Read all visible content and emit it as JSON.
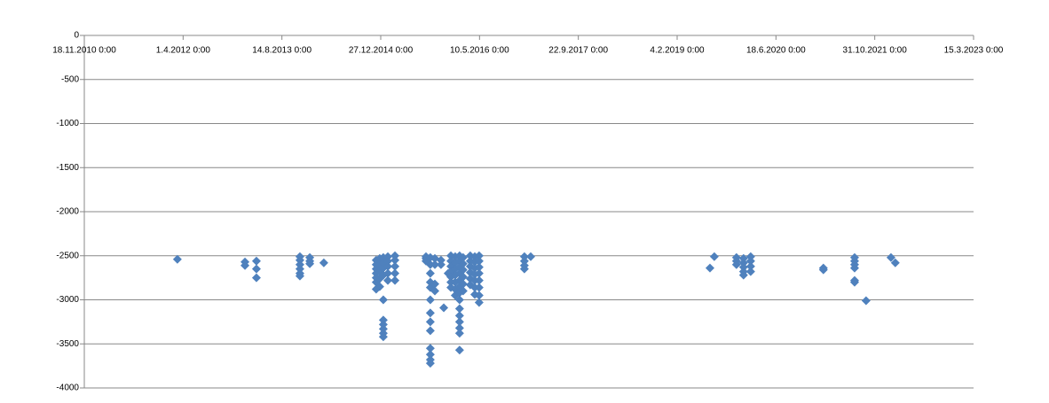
{
  "chart_data": {
    "type": "scatter",
    "color": "#4f81bd",
    "grid": true,
    "xlim": [
      40500,
      45000
    ],
    "xticks": [
      {
        "value": 40500,
        "label": "18.11.2010 0:00"
      },
      {
        "value": 41000,
        "label": "1.4.2012 0:00"
      },
      {
        "value": 41500,
        "label": "14.8.2013 0:00"
      },
      {
        "value": 42000,
        "label": "27.12.2014 0:00"
      },
      {
        "value": 42500,
        "label": "10.5.2016 0:00"
      },
      {
        "value": 43000,
        "label": "22.9.2017 0:00"
      },
      {
        "value": 43500,
        "label": "4.2.2019 0:00"
      },
      {
        "value": 44000,
        "label": "18.6.2020 0:00"
      },
      {
        "value": 44500,
        "label": "31.10.2021 0:00"
      },
      {
        "value": 45000,
        "label": "15.3.2023 0:00"
      }
    ],
    "ylim": [
      -4000,
      0
    ],
    "yticks": [
      0,
      -500,
      -1000,
      -1500,
      -2000,
      -2500,
      -3000,
      -3500,
      -4000
    ],
    "x": [
      40971,
      41313,
      41313,
      41371,
      41371,
      41371,
      41591,
      41591,
      41591,
      41591,
      41591,
      41591,
      41641,
      41641,
      41641,
      41712,
      41977,
      41977,
      41977,
      41977,
      41977,
      41977,
      41977,
      41995,
      41995,
      41995,
      41995,
      41995,
      42013,
      42013,
      42013,
      42013,
      42013,
      42013,
      42013,
      42013,
      42013,
      42013,
      42036,
      42036,
      42036,
      42036,
      42036,
      42072,
      42072,
      42072,
      42072,
      42072,
      42229,
      42229,
      42229,
      42251,
      42251,
      42251,
      42251,
      42251,
      42251,
      42251,
      42251,
      42251,
      42251,
      42251,
      42251,
      42251,
      42274,
      42274,
      42274,
      42274,
      42305,
      42305,
      42319,
      42341,
      42355,
      42355,
      42355,
      42355,
      42355,
      42355,
      42355,
      42377,
      42377,
      42377,
      42377,
      42377,
      42377,
      42377,
      42399,
      42399,
      42399,
      42399,
      42399,
      42399,
      42399,
      42399,
      42399,
      42399,
      42399,
      42399,
      42399,
      42399,
      42417,
      42417,
      42417,
      42417,
      42417,
      42417,
      42453,
      42453,
      42453,
      42453,
      42453,
      42453,
      42476,
      42476,
      42476,
      42476,
      42476,
      42476,
      42476,
      42498,
      42498,
      42498,
      42498,
      42498,
      42498,
      42498,
      42498,
      42727,
      42727,
      42727,
      42727,
      42759,
      43666,
      43688,
      43800,
      43800,
      43800,
      43836,
      43836,
      43836,
      43836,
      43836,
      43872,
      43872,
      43872,
      43872,
      44240,
      44240,
      44398,
      44398,
      44398,
      44398,
      44398,
      44398,
      44456,
      44582,
      44604
    ],
    "values": [
      -2540,
      -2570,
      -2610,
      -2560,
      -2650,
      -2750,
      -2510,
      -2550,
      -2600,
      -2650,
      -2700,
      -2730,
      -2520,
      -2560,
      -2590,
      -2580,
      -2550,
      -2600,
      -2650,
      -2700,
      -2750,
      -2800,
      -2880,
      -2530,
      -2600,
      -2680,
      -2760,
      -2850,
      -2520,
      -2580,
      -2640,
      -2720,
      -3000,
      -3230,
      -3280,
      -3330,
      -3380,
      -3420,
      -2510,
      -2560,
      -2620,
      -2700,
      -2780,
      -2500,
      -2550,
      -2620,
      -2700,
      -2780,
      -2510,
      -2530,
      -2560,
      -2520,
      -2600,
      -2700,
      -2800,
      -2860,
      -3000,
      -3150,
      -3250,
      -3350,
      -3550,
      -3620,
      -3680,
      -3720,
      -2530,
      -2600,
      -2820,
      -2900,
      -2550,
      -2600,
      -3090,
      -2700,
      -2500,
      -2560,
      -2620,
      -2680,
      -2740,
      -2800,
      -2860,
      -2510,
      -2580,
      -2650,
      -2720,
      -2800,
      -2880,
      -2950,
      -2500,
      -2560,
      -2630,
      -2700,
      -2780,
      -2850,
      -2920,
      -3000,
      -3100,
      -3180,
      -3250,
      -3320,
      -3380,
      -3570,
      -2520,
      -2590,
      -2660,
      -2740,
      -2820,
      -2900,
      -2500,
      -2560,
      -2620,
      -2690,
      -2760,
      -2830,
      -2510,
      -2570,
      -2640,
      -2710,
      -2780,
      -2860,
      -2940,
      -2500,
      -2560,
      -2630,
      -2700,
      -2780,
      -2860,
      -2950,
      -3030,
      -2510,
      -2560,
      -2610,
      -2650,
      -2510,
      -2640,
      -2510,
      -2520,
      -2560,
      -2600,
      -2530,
      -2580,
      -2630,
      -2680,
      -2720,
      -2510,
      -2560,
      -2620,
      -2680,
      -2640,
      -2660,
      -2520,
      -2560,
      -2600,
      -2640,
      -2780,
      -2800,
      -3010,
      -2520,
      -2580
    ]
  }
}
